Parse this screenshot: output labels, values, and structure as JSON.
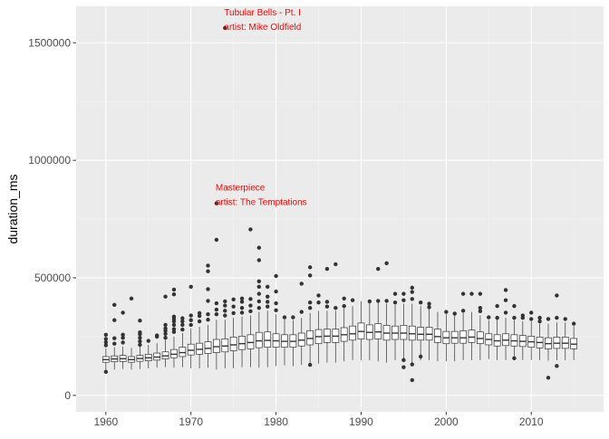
{
  "chart_data": {
    "type": "boxplot",
    "title": "",
    "xlabel": "",
    "ylabel": "duration_ms",
    "xlim": [
      1956.5,
      2018.5
    ],
    "ylim": [
      -70000,
      1655000
    ],
    "x_ticks": [
      1960,
      1970,
      1980,
      1990,
      2000,
      2010
    ],
    "x_tick_labels": [
      "1960",
      "1970",
      "1980",
      "1990",
      "2000",
      "2010"
    ],
    "y_ticks": [
      0,
      500000,
      1000000,
      1500000
    ],
    "y_tick_labels": [
      "0",
      "500000",
      "1000000",
      "1500000"
    ],
    "grid": true,
    "legend": "none",
    "colors": {
      "panel_background": "#ebebeb",
      "grid_major": "#ffffff",
      "grid_minor": "#f4f4f4",
      "box_fill": "#ffffff",
      "box_stroke": "#333333",
      "outlier": "#333333",
      "annotation": "#ff0000"
    },
    "boxes": [
      {
        "x": 1960,
        "lw": 100000,
        "q1": 141000,
        "med": 152000,
        "q3": 165000,
        "uw": 200000,
        "outliers": [
          100000,
          213000,
          226000,
          240000,
          258000
        ]
      },
      {
        "x": 1961,
        "lw": 110000,
        "q1": 143000,
        "med": 155000,
        "q3": 168000,
        "uw": 205000,
        "outliers": [
          220000,
          243000,
          320000,
          385000
        ]
      },
      {
        "x": 1962,
        "lw": 112000,
        "q1": 144000,
        "med": 156000,
        "q3": 170000,
        "uw": 208000,
        "outliers": [
          225000,
          245000,
          258000,
          352000
        ]
      },
      {
        "x": 1963,
        "lw": 110000,
        "q1": 141000,
        "med": 152000,
        "q3": 165000,
        "uw": 202000,
        "outliers": [
          412000
        ]
      },
      {
        "x": 1964,
        "lw": 112000,
        "q1": 145000,
        "med": 157000,
        "q3": 170000,
        "uw": 210000,
        "outliers": [
          215000,
          230000,
          245000,
          260000,
          268000,
          318000
        ]
      },
      {
        "x": 1965,
        "lw": 115000,
        "q1": 147000,
        "med": 160000,
        "q3": 175000,
        "uw": 215000,
        "outliers": [
          232000
        ]
      },
      {
        "x": 1966,
        "lw": 118000,
        "q1": 150000,
        "med": 163000,
        "q3": 180000,
        "uw": 222000,
        "outliers": [
          250000,
          255000
        ]
      },
      {
        "x": 1967,
        "lw": 120000,
        "q1": 155000,
        "med": 168000,
        "q3": 185000,
        "uw": 235000,
        "outliers": [
          245000,
          262000,
          275000,
          285000,
          300000,
          420000
        ]
      },
      {
        "x": 1968,
        "lw": 118000,
        "q1": 160000,
        "med": 175000,
        "q3": 195000,
        "uw": 250000,
        "outliers": [
          270000,
          282000,
          300000,
          315000,
          325000,
          335000,
          430000,
          450000
        ]
      },
      {
        "x": 1969,
        "lw": 120000,
        "q1": 165000,
        "med": 182000,
        "q3": 205000,
        "uw": 265000,
        "outliers": [
          280000,
          300000,
          315000,
          328000
        ]
      },
      {
        "x": 1970,
        "lw": 115000,
        "q1": 172000,
        "med": 192000,
        "q3": 218000,
        "uw": 285000,
        "outliers": [
          300000,
          320000,
          340000,
          462000
        ]
      },
      {
        "x": 1971,
        "lw": 115000,
        "q1": 175000,
        "med": 196000,
        "q3": 222000,
        "uw": 292000,
        "outliers": [
          315000,
          338000,
          350000
        ]
      },
      {
        "x": 1972,
        "lw": 118000,
        "q1": 178000,
        "med": 200000,
        "q3": 228000,
        "uw": 300000,
        "outliers": [
          322000,
          345000,
          402000,
          452000,
          528000,
          552000
        ]
      },
      {
        "x": 1973,
        "lw": 110000,
        "q1": 182000,
        "med": 207000,
        "q3": 238000,
        "uw": 322000,
        "outliers": [
          345000,
          365000,
          392000,
          662000,
          817000
        ]
      },
      {
        "x": 1974,
        "lw": 115000,
        "q1": 185000,
        "med": 210000,
        "q3": 240000,
        "uw": 322000,
        "outliers": [
          340000,
          360000,
          382000,
          400000,
          1563000
        ]
      },
      {
        "x": 1975,
        "lw": 115000,
        "q1": 190000,
        "med": 215000,
        "q3": 248000,
        "uw": 330000,
        "outliers": [
          350000,
          378000,
          408000
        ]
      },
      {
        "x": 1976,
        "lw": 120000,
        "q1": 195000,
        "med": 220000,
        "q3": 252000,
        "uw": 335000,
        "outliers": [
          352000,
          372000,
          398000,
          412000
        ]
      },
      {
        "x": 1977,
        "lw": 120000,
        "q1": 198000,
        "med": 225000,
        "q3": 258000,
        "uw": 340000,
        "outliers": [
          358000,
          382000,
          410000,
          706000
        ]
      },
      {
        "x": 1978,
        "lw": 118000,
        "q1": 203000,
        "med": 232000,
        "q3": 268000,
        "uw": 355000,
        "outliers": [
          372000,
          400000,
          432000,
          462000,
          485000,
          575000,
          628000
        ]
      },
      {
        "x": 1979,
        "lw": 120000,
        "q1": 205000,
        "med": 234000,
        "q3": 270000,
        "uw": 360000,
        "outliers": [
          378000,
          398000,
          420000,
          462000
        ]
      },
      {
        "x": 1980,
        "lw": 125000,
        "q1": 205000,
        "med": 232000,
        "q3": 262000,
        "uw": 345000,
        "outliers": [
          362000,
          392000,
          442000,
          508000
        ]
      },
      {
        "x": 1981,
        "lw": 128000,
        "q1": 205000,
        "med": 230000,
        "q3": 258000,
        "uw": 322000,
        "outliers": [
          332000
        ]
      },
      {
        "x": 1982,
        "lw": 125000,
        "q1": 205000,
        "med": 230000,
        "q3": 258000,
        "uw": 320000,
        "outliers": [
          332000
        ]
      },
      {
        "x": 1983,
        "lw": 130000,
        "q1": 210000,
        "med": 235000,
        "q3": 265000,
        "uw": 330000,
        "outliers": [
          355000,
          475000
        ]
      },
      {
        "x": 1984,
        "lw": 130000,
        "q1": 215000,
        "med": 242000,
        "q3": 275000,
        "uw": 350000,
        "outliers": [
          130000,
          372000,
          395000,
          510000,
          545000
        ]
      },
      {
        "x": 1985,
        "lw": 135000,
        "q1": 220000,
        "med": 250000,
        "q3": 280000,
        "uw": 360000,
        "outliers": [
          395000,
          425000
        ]
      },
      {
        "x": 1986,
        "lw": 140000,
        "q1": 225000,
        "med": 252000,
        "q3": 282000,
        "uw": 360000,
        "outliers": [
          378000,
          398000,
          538000
        ]
      },
      {
        "x": 1987,
        "lw": 140000,
        "q1": 225000,
        "med": 252000,
        "q3": 282000,
        "uw": 360000,
        "outliers": [
          372000,
          558000
        ]
      },
      {
        "x": 1988,
        "lw": 145000,
        "q1": 230000,
        "med": 258000,
        "q3": 288000,
        "uw": 370000,
        "outliers": [
          380000,
          412000
        ]
      },
      {
        "x": 1989,
        "lw": 150000,
        "q1": 235000,
        "med": 262000,
        "q3": 295000,
        "uw": 380000,
        "outliers": [
          405000
        ]
      },
      {
        "x": 1990,
        "lw": 150000,
        "q1": 240000,
        "med": 272000,
        "q3": 308000,
        "uw": 400000,
        "outliers": []
      },
      {
        "x": 1991,
        "lw": 150000,
        "q1": 238000,
        "med": 268000,
        "q3": 300000,
        "uw": 395000,
        "outliers": [
          400000
        ]
      },
      {
        "x": 1992,
        "lw": 145000,
        "q1": 240000,
        "med": 270000,
        "q3": 305000,
        "uw": 400000,
        "outliers": [
          402000,
          538000
        ]
      },
      {
        "x": 1993,
        "lw": 140000,
        "q1": 235000,
        "med": 265000,
        "q3": 298000,
        "uw": 390000,
        "outliers": [
          402000,
          562000
        ]
      },
      {
        "x": 1994,
        "lw": 150000,
        "q1": 238000,
        "med": 265000,
        "q3": 295000,
        "uw": 385000,
        "outliers": [
          395000,
          432000
        ]
      },
      {
        "x": 1995,
        "lw": 150000,
        "q1": 238000,
        "med": 265000,
        "q3": 298000,
        "uw": 390000,
        "outliers": [
          120000,
          150000,
          405000,
          432000
        ]
      },
      {
        "x": 1996,
        "lw": 140000,
        "q1": 235000,
        "med": 262000,
        "q3": 295000,
        "uw": 390000,
        "outliers": [
          65000,
          132000,
          410000,
          440000,
          458000
        ]
      },
      {
        "x": 1997,
        "lw": 150000,
        "q1": 235000,
        "med": 260000,
        "q3": 290000,
        "uw": 380000,
        "outliers": [
          165000,
          395000
        ]
      },
      {
        "x": 1998,
        "lw": 150000,
        "q1": 235000,
        "med": 260000,
        "q3": 290000,
        "uw": 370000,
        "outliers": [
          375000,
          390000
        ]
      },
      {
        "x": 1999,
        "lw": 145000,
        "q1": 225000,
        "med": 250000,
        "q3": 282000,
        "uw": 355000,
        "outliers": []
      },
      {
        "x": 2000,
        "lw": 145000,
        "q1": 220000,
        "med": 245000,
        "q3": 272000,
        "uw": 345000,
        "outliers": [
          355000
        ]
      },
      {
        "x": 2001,
        "lw": 145000,
        "q1": 222000,
        "med": 245000,
        "q3": 272000,
        "uw": 340000,
        "outliers": [
          348000
        ]
      },
      {
        "x": 2002,
        "lw": 150000,
        "q1": 222000,
        "med": 245000,
        "q3": 275000,
        "uw": 350000,
        "outliers": [
          360000,
          432000
        ]
      },
      {
        "x": 2003,
        "lw": 150000,
        "q1": 225000,
        "med": 248000,
        "q3": 278000,
        "uw": 355000,
        "outliers": [
          432000
        ]
      },
      {
        "x": 2004,
        "lw": 150000,
        "q1": 220000,
        "med": 242000,
        "q3": 270000,
        "uw": 340000,
        "outliers": [
          358000,
          372000,
          432000
        ]
      },
      {
        "x": 2005,
        "lw": 155000,
        "q1": 215000,
        "med": 238000,
        "q3": 262000,
        "uw": 320000,
        "outliers": [
          332000
        ]
      },
      {
        "x": 2006,
        "lw": 150000,
        "q1": 210000,
        "med": 232000,
        "q3": 258000,
        "uw": 322000,
        "outliers": [
          330000,
          380000
        ]
      },
      {
        "x": 2007,
        "lw": 150000,
        "q1": 212000,
        "med": 235000,
        "q3": 262000,
        "uw": 330000,
        "outliers": [
          352000,
          405000,
          448000
        ]
      },
      {
        "x": 2008,
        "lw": 150000,
        "q1": 210000,
        "med": 232000,
        "q3": 258000,
        "uw": 320000,
        "outliers": [
          158000,
          330000,
          380000
        ]
      },
      {
        "x": 2009,
        "lw": 150000,
        "q1": 208000,
        "med": 230000,
        "q3": 255000,
        "uw": 315000,
        "outliers": [
          330000,
          340000
        ]
      },
      {
        "x": 2010,
        "lw": 150000,
        "q1": 205000,
        "med": 228000,
        "q3": 252000,
        "uw": 315000,
        "outliers": [
          325000,
          352000
        ]
      },
      {
        "x": 2011,
        "lw": 150000,
        "q1": 202000,
        "med": 225000,
        "q3": 248000,
        "uw": 305000,
        "outliers": [
          315000,
          330000
        ]
      },
      {
        "x": 2012,
        "lw": 148000,
        "q1": 198000,
        "med": 220000,
        "q3": 245000,
        "uw": 305000,
        "outliers": [
          75000,
          325000
        ]
      },
      {
        "x": 2013,
        "lw": 150000,
        "q1": 200000,
        "med": 222000,
        "q3": 248000,
        "uw": 310000,
        "outliers": [
          125000,
          330000,
          425000
        ]
      },
      {
        "x": 2014,
        "lw": 150000,
        "q1": 200000,
        "med": 222000,
        "q3": 248000,
        "uw": 310000,
        "outliers": [
          325000
        ]
      },
      {
        "x": 2015,
        "lw": 150000,
        "q1": 198000,
        "med": 218000,
        "q3": 242000,
        "uw": 295000,
        "outliers": [
          305000
        ]
      }
    ],
    "annotations": [
      {
        "x": 1974,
        "y": 1563000,
        "lines": [
          "Tubular Bells - Pt. I",
          "artist: Mike Oldfield"
        ]
      },
      {
        "x": 1973,
        "y": 817000,
        "lines": [
          "Masterpiece",
          "artist: The Temptations"
        ]
      }
    ]
  }
}
